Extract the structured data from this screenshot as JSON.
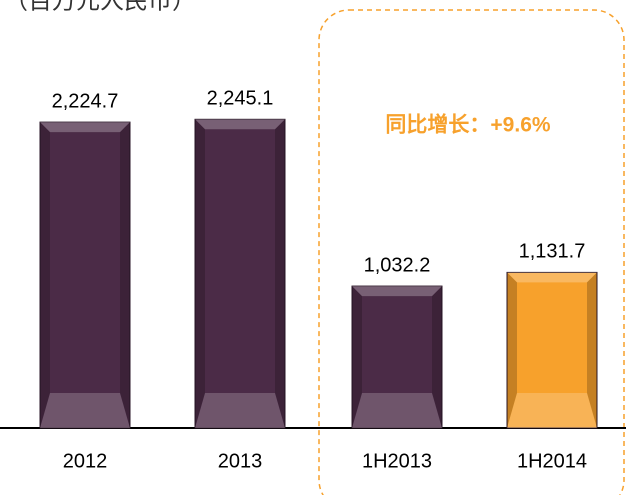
{
  "chart_data": {
    "type": "bar",
    "title": "（百万元人民币）",
    "annotation": "同比增长：+9.6%",
    "categories": [
      "2012",
      "2013",
      "1H2013",
      "1H2014"
    ],
    "values": [
      2224.7,
      2245.1,
      1032.2,
      1131.7
    ],
    "value_labels": [
      "2,224.7",
      "2,245.1",
      "1,032.2",
      "1,131.7"
    ],
    "colors": [
      "#4b2b47",
      "#4b2b47",
      "#4b2b47",
      "#f7a12c"
    ],
    "ylim": [
      0,
      2400
    ]
  }
}
